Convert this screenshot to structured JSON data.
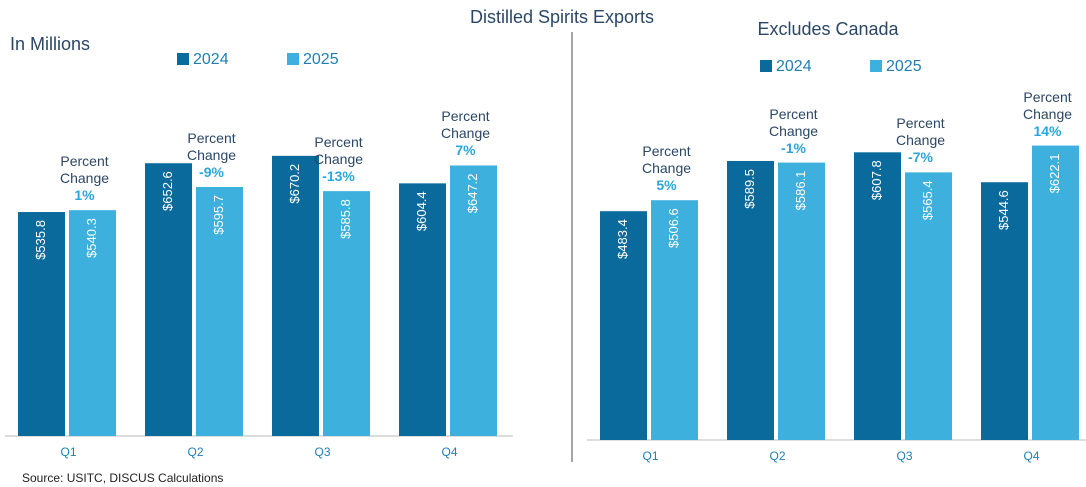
{
  "source": "Source: USITC, DISCUS Calculations",
  "chart_data": [
    {
      "type": "bar",
      "title": "Distilled Spirits Exports",
      "subtitle": "In Millions",
      "categories": [
        "Q1",
        "Q2",
        "Q3",
        "Q4"
      ],
      "ylim": [
        0,
        1000
      ],
      "series": [
        {
          "name": "2024",
          "color": "#0b6a9c",
          "values": [
            535.8,
            652.6,
            670.2,
            604.4
          ],
          "value_labels": [
            "$535.8",
            "$652.6",
            "$670.2",
            "$604.4"
          ]
        },
        {
          "name": "2025",
          "color": "#3db0dd",
          "values": [
            540.3,
            595.7,
            585.8,
            647.2
          ],
          "value_labels": [
            "$540.3",
            "$595.7",
            "$585.8",
            "$647.2"
          ]
        }
      ],
      "annotation_label": "Percent Change",
      "percent_change": [
        "1%",
        "-9%",
        "-13%",
        "7%"
      ]
    },
    {
      "type": "bar",
      "title": "Excludes Canada",
      "categories": [
        "Q1",
        "Q2",
        "Q3",
        "Q4"
      ],
      "ylim": [
        0,
        900
      ],
      "series": [
        {
          "name": "2024",
          "color": "#0b6a9c",
          "values": [
            483.4,
            589.5,
            607.8,
            544.6
          ],
          "value_labels": [
            "$483.4",
            "$589.5",
            "$607.8",
            "$544.6"
          ]
        },
        {
          "name": "2025",
          "color": "#3db0dd",
          "values": [
            506.6,
            586.1,
            565.4,
            622.1
          ],
          "value_labels": [
            "$506.6",
            "$586.1",
            "$565.4",
            "$622.1"
          ]
        }
      ],
      "annotation_label": "Percent Change",
      "percent_change": [
        "5%",
        "-1%",
        "-7%",
        "14%"
      ]
    }
  ]
}
